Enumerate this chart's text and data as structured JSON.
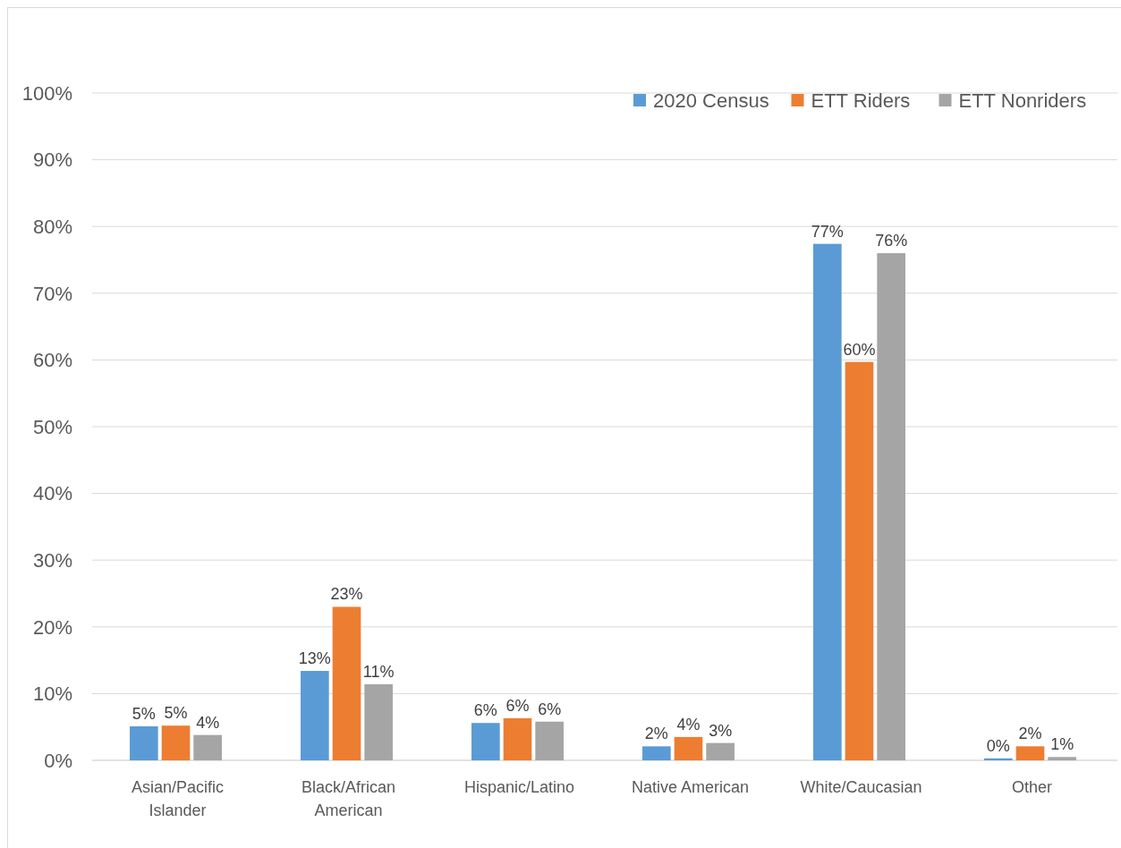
{
  "chart_data": {
    "type": "bar",
    "categories": [
      "Asian/Pacific Islander",
      "Black/African American",
      "Hispanic/Latino",
      "Native American",
      "White/Caucasian",
      "Other"
    ],
    "series": [
      {
        "name": "2020 Census",
        "color": "#5b9bd5",
        "values": [
          5.1,
          13.4,
          5.6,
          2.1,
          77.4,
          0.3
        ],
        "value_labels": [
          "5%",
          "13%",
          "6%",
          "2%",
          "77%",
          "0%"
        ]
      },
      {
        "name": "ETT Riders",
        "color": "#ed7d31",
        "values": [
          5.2,
          23,
          6.3,
          3.5,
          59.7,
          2.1
        ],
        "value_labels": [
          "5%",
          "23%",
          "6%",
          "4%",
          "60%",
          "2%"
        ]
      },
      {
        "name": "ETT Nonriders",
        "color": "#a5a5a5",
        "values": [
          3.8,
          11.4,
          5.8,
          2.6,
          76,
          0.5
        ],
        "value_labels": [
          "4%",
          "11%",
          "6%",
          "3%",
          "76%",
          "1%"
        ]
      }
    ],
    "ylim": [
      0,
      100
    ],
    "yticks": [
      {
        "value": 0,
        "label": "0%"
      },
      {
        "value": 10,
        "label": "10%"
      },
      {
        "value": 20,
        "label": "20%"
      },
      {
        "value": 30,
        "label": "30%"
      },
      {
        "value": 40,
        "label": "40%"
      },
      {
        "value": 50,
        "label": "50%"
      },
      {
        "value": 60,
        "label": "60%"
      },
      {
        "value": 70,
        "label": "70%"
      },
      {
        "value": 80,
        "label": "80%"
      },
      {
        "value": 90,
        "label": "90%"
      },
      {
        "value": 100,
        "label": "100%"
      }
    ],
    "grid": "y",
    "legend": "top right"
  }
}
